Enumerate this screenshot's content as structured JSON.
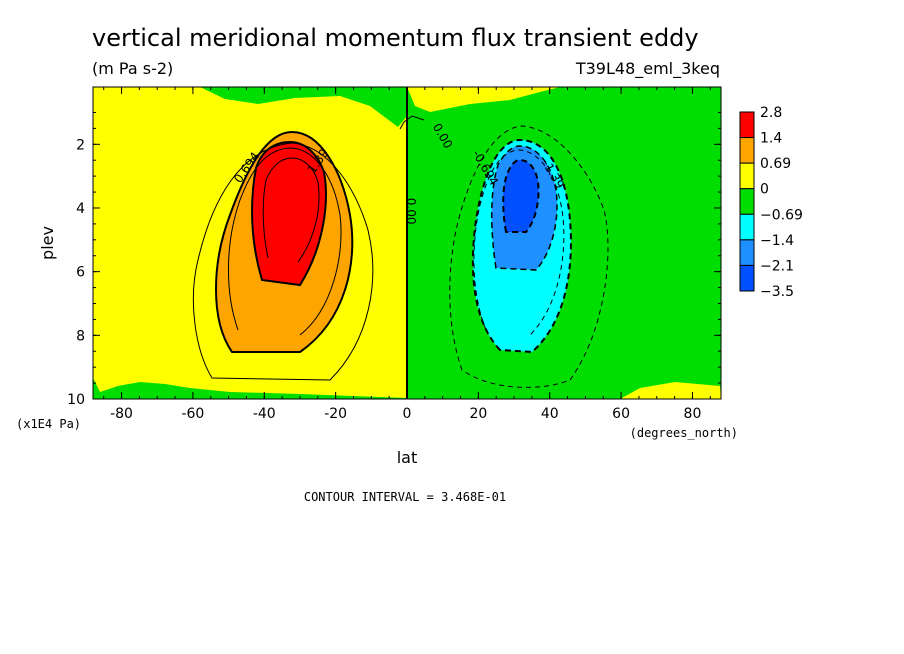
{
  "chart_data": {
    "type": "contour",
    "title": "vertical meridional momentum flux transient eddy",
    "units": "(m Pa s-2)",
    "run_label": "T39L48_eml_3keq",
    "xlabel": "lat",
    "x_units": "(degrees_north)",
    "ylabel": "plev",
    "y_units": "(x1E4 Pa)",
    "xlim": [
      -88,
      88
    ],
    "ylim": [
      10,
      0.2
    ],
    "x_ticks": [
      -80,
      -60,
      -40,
      -20,
      0,
      20,
      40,
      60,
      80
    ],
    "x_tick_labels": [
      "-80",
      "-60",
      "-40",
      "-20",
      "0",
      "20",
      "40",
      "60",
      "80"
    ],
    "y_ticks": [
      2,
      4,
      6,
      8,
      10
    ],
    "y_tick_labels": [
      "2",
      "4",
      "6",
      "8",
      "10"
    ],
    "contour_interval": "CONTOUR INTERVAL = 3.468E-01",
    "colorbar": {
      "labels": [
        "2.8",
        "1.4",
        "0.69",
        "0",
        "−0.69",
        "−1.4",
        "−2.1",
        "−3.5"
      ],
      "colors": [
        "#ff0000",
        "#ffa500",
        "#ffff00",
        "#00dd00",
        "#00ffff",
        "#1e90ff",
        "#0050ff"
      ]
    },
    "features": [
      {
        "name": "positive maximum",
        "lat": -32,
        "plev": 3.8,
        "value": 2.8
      },
      {
        "name": "negative minimum",
        "lat": 32,
        "plev": 3.6,
        "value": -3.5
      }
    ],
    "contour_labels": [
      {
        "text": "0.694",
        "lat": -44,
        "plev": 2.8
      },
      {
        "text": "1.39",
        "lat": -24,
        "plev": 2.6
      },
      {
        "text": "0.00",
        "lat": 0,
        "plev": 4.1
      },
      {
        "text": "0.00",
        "lat": 9,
        "plev": 1.8
      },
      {
        "text": "-0.694",
        "lat": 21,
        "plev": 2.8
      },
      {
        "text": "-1.39",
        "lat": 40,
        "plev": 3.0
      }
    ]
  }
}
